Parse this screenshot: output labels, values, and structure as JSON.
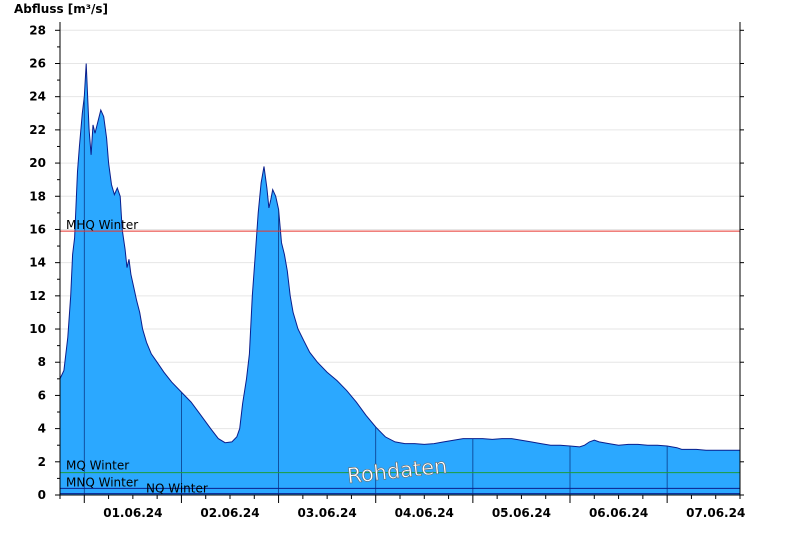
{
  "chart_data": {
    "type": "area",
    "ylabel": "Abfluss [m³/s]",
    "ylim": [
      0,
      28.5
    ],
    "yticks": [
      0,
      2,
      4,
      6,
      8,
      10,
      12,
      14,
      16,
      18,
      20,
      22,
      24,
      26,
      28
    ],
    "grid": true,
    "fill_color": "#2ba8ff",
    "line_color": "#0a1e8c",
    "x_unit": "days since start of 31.05.24 (00:00)",
    "xlim": [
      0.75,
      7.75
    ],
    "day_boundaries": [
      1,
      2,
      3,
      4,
      5,
      6,
      7
    ],
    "x_tick_labels": [
      {
        "x": 1.5,
        "label": "01.06.24"
      },
      {
        "x": 2.5,
        "label": "02.06.24"
      },
      {
        "x": 3.5,
        "label": "03.06.24"
      },
      {
        "x": 4.5,
        "label": "04.06.24"
      },
      {
        "x": 5.5,
        "label": "05.06.24"
      },
      {
        "x": 6.5,
        "label": "06.06.24"
      },
      {
        "x": 7.5,
        "label": "07.06.24"
      }
    ],
    "series": [
      {
        "points": [
          [
            0.75,
            7.0
          ],
          [
            0.79,
            7.5
          ],
          [
            0.83,
            9.5
          ],
          [
            0.86,
            12.0
          ],
          [
            0.88,
            14.5
          ],
          [
            0.9,
            15.5
          ],
          [
            0.93,
            19.5
          ],
          [
            0.95,
            21.0
          ],
          [
            0.98,
            23.0
          ],
          [
            1.0,
            24.0
          ],
          [
            1.02,
            26.0
          ],
          [
            1.05,
            22.0
          ],
          [
            1.07,
            20.5
          ],
          [
            1.09,
            22.3
          ],
          [
            1.11,
            21.8
          ],
          [
            1.14,
            22.5
          ],
          [
            1.17,
            23.2
          ],
          [
            1.2,
            22.8
          ],
          [
            1.23,
            21.5
          ],
          [
            1.25,
            20.0
          ],
          [
            1.28,
            18.7
          ],
          [
            1.31,
            18.1
          ],
          [
            1.34,
            18.5
          ],
          [
            1.37,
            18.0
          ],
          [
            1.39,
            16.0
          ],
          [
            1.42,
            14.8
          ],
          [
            1.44,
            13.7
          ],
          [
            1.46,
            14.2
          ],
          [
            1.48,
            13.3
          ],
          [
            1.51,
            12.5
          ],
          [
            1.54,
            11.7
          ],
          [
            1.57,
            11.0
          ],
          [
            1.6,
            10.0
          ],
          [
            1.64,
            9.2
          ],
          [
            1.69,
            8.5
          ],
          [
            1.75,
            8.0
          ],
          [
            1.82,
            7.4
          ],
          [
            1.9,
            6.8
          ],
          [
            2.0,
            6.2
          ],
          [
            2.1,
            5.6
          ],
          [
            2.2,
            4.8
          ],
          [
            2.3,
            4.0
          ],
          [
            2.38,
            3.4
          ],
          [
            2.45,
            3.15
          ],
          [
            2.52,
            3.2
          ],
          [
            2.57,
            3.5
          ],
          [
            2.6,
            4.0
          ],
          [
            2.63,
            5.5
          ],
          [
            2.67,
            7.0
          ],
          [
            2.7,
            8.5
          ],
          [
            2.73,
            12.0
          ],
          [
            2.76,
            14.5
          ],
          [
            2.79,
            17.0
          ],
          [
            2.82,
            18.8
          ],
          [
            2.85,
            19.8
          ],
          [
            2.88,
            18.5
          ],
          [
            2.9,
            17.3
          ],
          [
            2.92,
            17.8
          ],
          [
            2.94,
            18.4
          ],
          [
            2.97,
            18.0
          ],
          [
            3.0,
            17.2
          ],
          [
            3.03,
            15.2
          ],
          [
            3.06,
            14.5
          ],
          [
            3.09,
            13.5
          ],
          [
            3.12,
            12.0
          ],
          [
            3.15,
            11.0
          ],
          [
            3.2,
            10.0
          ],
          [
            3.26,
            9.3
          ],
          [
            3.32,
            8.6
          ],
          [
            3.4,
            8.0
          ],
          [
            3.5,
            7.4
          ],
          [
            3.6,
            6.9
          ],
          [
            3.7,
            6.3
          ],
          [
            3.8,
            5.6
          ],
          [
            3.9,
            4.8
          ],
          [
            4.0,
            4.1
          ],
          [
            4.1,
            3.5
          ],
          [
            4.2,
            3.2
          ],
          [
            4.3,
            3.1
          ],
          [
            4.4,
            3.1
          ],
          [
            4.5,
            3.05
          ],
          [
            4.6,
            3.1
          ],
          [
            4.7,
            3.2
          ],
          [
            4.8,
            3.3
          ],
          [
            4.9,
            3.4
          ],
          [
            5.0,
            3.4
          ],
          [
            5.1,
            3.4
          ],
          [
            5.2,
            3.35
          ],
          [
            5.3,
            3.4
          ],
          [
            5.4,
            3.4
          ],
          [
            5.5,
            3.3
          ],
          [
            5.6,
            3.2
          ],
          [
            5.7,
            3.1
          ],
          [
            5.8,
            3.0
          ],
          [
            5.9,
            3.0
          ],
          [
            6.0,
            2.95
          ],
          [
            6.1,
            2.9
          ],
          [
            6.15,
            3.0
          ],
          [
            6.2,
            3.2
          ],
          [
            6.25,
            3.3
          ],
          [
            6.3,
            3.2
          ],
          [
            6.4,
            3.1
          ],
          [
            6.5,
            3.0
          ],
          [
            6.6,
            3.05
          ],
          [
            6.7,
            3.05
          ],
          [
            6.8,
            3.0
          ],
          [
            6.9,
            3.0
          ],
          [
            7.0,
            2.95
          ],
          [
            7.1,
            2.85
          ],
          [
            7.15,
            2.75
          ],
          [
            7.3,
            2.75
          ],
          [
            7.4,
            2.7
          ],
          [
            7.5,
            2.7
          ],
          [
            7.6,
            2.7
          ],
          [
            7.75,
            2.7
          ]
        ]
      }
    ],
    "reference_lines": [
      {
        "label": "MHQ Winter",
        "value": 15.9,
        "color": "#e8352d"
      },
      {
        "label": "MQ Winter",
        "value": 1.35,
        "color": "#1c9c3c"
      },
      {
        "label": "MNQ Winter",
        "value": 0.4,
        "color": "#0a1e8c"
      },
      {
        "label": "NQ Winter",
        "value": 0.08,
        "color": "#0a1e8c"
      }
    ],
    "watermark": "Rohdaten"
  }
}
